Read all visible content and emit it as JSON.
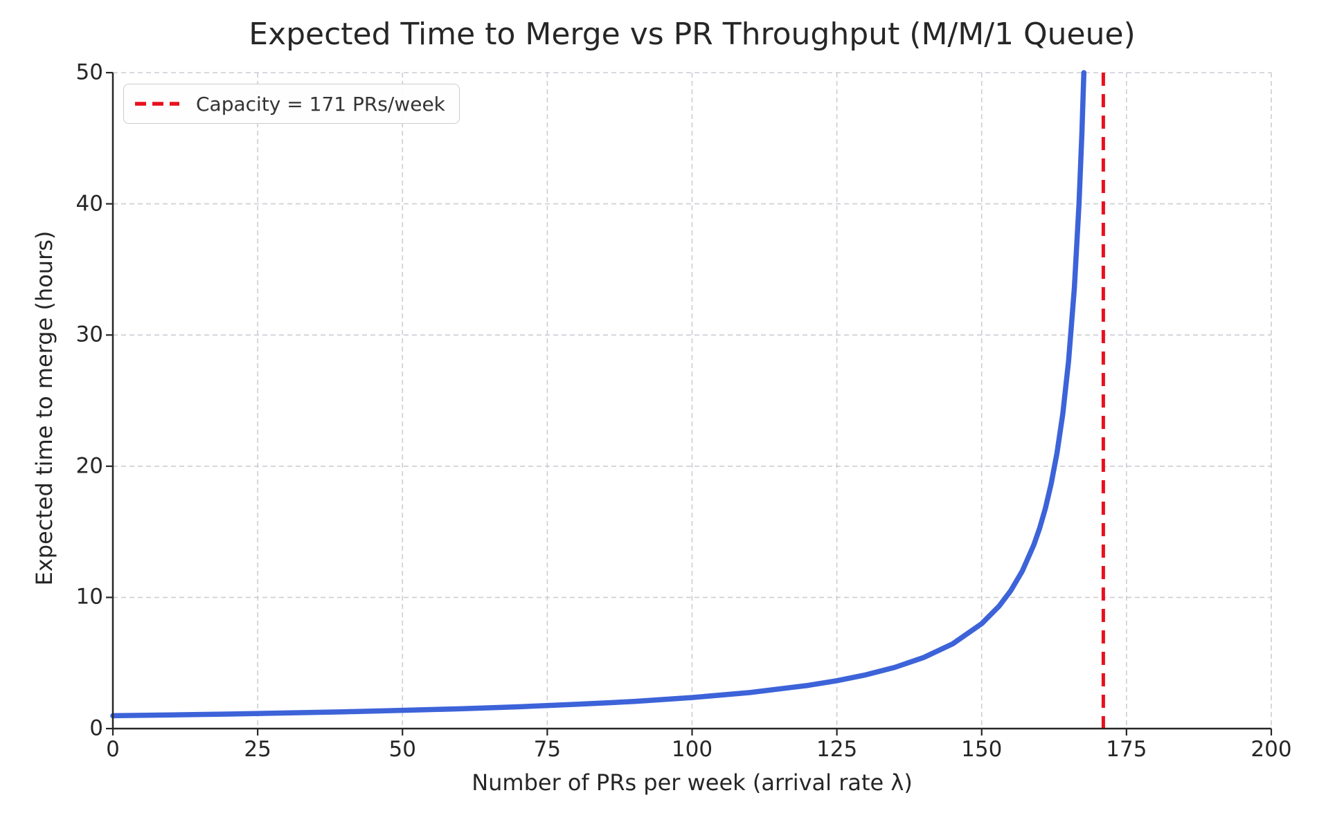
{
  "chart": {
    "title": "Expected Time to Merge vs PR Throughput (M/M/1 Queue)",
    "xlabel": "Number of PRs per week (arrival rate λ)",
    "ylabel": "Expected time to merge (hours)",
    "legend": [
      {
        "label": "Capacity = 171 PRs/week",
        "swatch": "red-dashed-line"
      }
    ]
  },
  "chart_data": {
    "type": "line",
    "title": "Expected Time to Merge vs PR Throughput (M/M/1 Queue)",
    "xlabel": "Number of PRs per week (arrival rate λ)",
    "ylabel": "Expected time to merge (hours)",
    "xlim": [
      0,
      200
    ],
    "ylim": [
      0,
      50
    ],
    "xticks": [
      0,
      25,
      50,
      75,
      100,
      125,
      150,
      175,
      200
    ],
    "yticks": [
      0,
      10,
      20,
      30,
      40,
      50
    ],
    "grid": true,
    "grid_style": "dashed",
    "legend_position": "upper left",
    "series": [
      {
        "name": "expected-time-to-merge",
        "color": "#3d63d9",
        "style": "solid",
        "line_width": 7.5,
        "x": [
          0,
          10,
          20,
          30,
          40,
          50,
          60,
          70,
          80,
          90,
          100,
          110,
          120,
          125,
          130,
          135,
          140,
          145,
          150,
          153,
          155,
          157,
          159,
          160,
          161,
          162,
          163,
          164,
          165,
          166,
          166.8,
          167.3,
          167.64
        ],
        "y": [
          0.98,
          1.04,
          1.11,
          1.19,
          1.28,
          1.39,
          1.51,
          1.66,
          1.85,
          2.07,
          2.37,
          2.75,
          3.29,
          3.65,
          4.1,
          4.67,
          5.42,
          6.46,
          8.0,
          9.33,
          10.5,
          12.0,
          14.0,
          15.27,
          16.8,
          18.67,
          21.0,
          24.0,
          28.0,
          33.6,
          40.0,
          45.41,
          50.0
        ]
      }
    ],
    "vline": {
      "x": 171,
      "color": "#e8101e",
      "style": "dashed",
      "line_width": 5,
      "label": "Capacity = 171 PRs/week"
    },
    "capacity_prs_per_week": 171
  },
  "colors": {
    "curve": "#3d63d9",
    "capacity_line": "#e8101e",
    "grid": "#cdccd4",
    "spine": "#262626",
    "text": "#262626",
    "legend_border": "#cdcdcd",
    "background": "#ffffff"
  }
}
